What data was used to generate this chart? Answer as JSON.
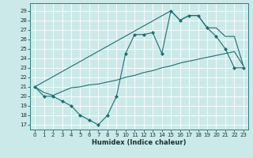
{
  "xlabel": "Humidex (Indice chaleur)",
  "bg_color": "#cce9e9",
  "grid_color": "#ffffff",
  "line_color": "#1a7070",
  "xlim": [
    -0.5,
    23.5
  ],
  "ylim": [
    16.5,
    29.8
  ],
  "yticks": [
    17,
    18,
    19,
    20,
    21,
    22,
    23,
    24,
    25,
    26,
    27,
    28,
    29
  ],
  "xticks": [
    0,
    1,
    2,
    3,
    4,
    5,
    6,
    7,
    8,
    9,
    10,
    11,
    12,
    13,
    14,
    15,
    16,
    17,
    18,
    19,
    20,
    21,
    22,
    23
  ],
  "line1_x": [
    0,
    1,
    2,
    3,
    4,
    5,
    6,
    7,
    8,
    9,
    10,
    11,
    12,
    13,
    14,
    15,
    16,
    17,
    18,
    19,
    20,
    21,
    22,
    23
  ],
  "line1_y": [
    21,
    20,
    20,
    19.5,
    19,
    18,
    17.5,
    17,
    18,
    20,
    24.5,
    26.5,
    26.5,
    26.7,
    24.5,
    29,
    28,
    28.5,
    28.5,
    27.2,
    26.3,
    25,
    23,
    23
  ],
  "line2_x": [
    0,
    15,
    16,
    17,
    18,
    19,
    20,
    21,
    22,
    23
  ],
  "line2_y": [
    21,
    29,
    28,
    28.5,
    28.5,
    27.2,
    27.2,
    26.3,
    26.3,
    23.2
  ],
  "line3_x": [
    0,
    1,
    2,
    3,
    4,
    5,
    6,
    7,
    8,
    9,
    10,
    11,
    12,
    13,
    14,
    15,
    16,
    17,
    18,
    19,
    20,
    21,
    22,
    23
  ],
  "line3_y": [
    21,
    20.4,
    20.1,
    20.5,
    20.9,
    21.0,
    21.2,
    21.3,
    21.5,
    21.7,
    22.0,
    22.2,
    22.5,
    22.7,
    23.0,
    23.2,
    23.5,
    23.7,
    23.9,
    24.1,
    24.3,
    24.5,
    24.7,
    23.2
  ]
}
